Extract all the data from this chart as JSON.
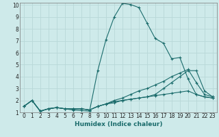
{
  "title": "",
  "xlabel": "Humidex (Indice chaleur)",
  "bg_color": "#ceeaea",
  "grid_color": "#b8d8d8",
  "line_color": "#1a6b6b",
  "xlim": [
    -0.5,
    23.5
  ],
  "ylim": [
    1,
    10.2
  ],
  "xticks": [
    0,
    1,
    2,
    3,
    4,
    5,
    6,
    7,
    8,
    9,
    10,
    11,
    12,
    13,
    14,
    15,
    16,
    17,
    18,
    19,
    20,
    21,
    22,
    23
  ],
  "yticks": [
    1,
    2,
    3,
    4,
    5,
    6,
    7,
    8,
    9,
    10
  ],
  "series": [
    [
      1.5,
      2.0,
      1.1,
      1.3,
      1.4,
      1.3,
      1.2,
      1.15,
      1.1,
      4.5,
      7.1,
      9.0,
      10.15,
      10.05,
      9.8,
      8.5,
      7.2,
      6.8,
      5.5,
      5.6,
      3.8,
      2.5,
      2.3,
      2.2
    ],
    [
      1.5,
      2.0,
      1.1,
      1.3,
      1.4,
      1.3,
      1.3,
      1.3,
      1.2,
      1.5,
      1.7,
      1.8,
      2.0,
      2.1,
      2.2,
      2.3,
      2.5,
      3.0,
      3.5,
      4.0,
      4.5,
      4.5,
      2.8,
      2.3
    ],
    [
      1.5,
      2.0,
      1.1,
      1.3,
      1.4,
      1.3,
      1.3,
      1.3,
      1.2,
      1.5,
      1.7,
      2.0,
      2.2,
      2.5,
      2.8,
      3.0,
      3.3,
      3.6,
      4.0,
      4.3,
      4.6,
      3.5,
      2.5,
      2.3
    ],
    [
      1.5,
      2.0,
      1.1,
      1.3,
      1.4,
      1.3,
      1.3,
      1.3,
      1.2,
      1.5,
      1.7,
      1.9,
      2.0,
      2.1,
      2.2,
      2.3,
      2.4,
      2.5,
      2.6,
      2.7,
      2.8,
      2.5,
      2.3,
      2.2
    ]
  ],
  "xlabel_fontsize": 6.5,
  "tick_fontsize": 5.5,
  "xlabel_color": "#1a6b6b"
}
